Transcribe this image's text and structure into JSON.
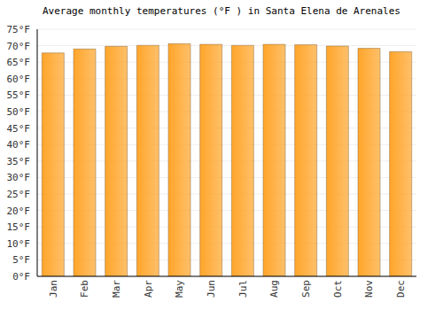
{
  "chart_data": {
    "type": "bar",
    "title": "Average monthly temperatures (°F ) in Santa Elena de Arenales",
    "categories": [
      "Jan",
      "Feb",
      "Mar",
      "Apr",
      "May",
      "Jun",
      "Jul",
      "Aug",
      "Sep",
      "Oct",
      "Nov",
      "Dec"
    ],
    "values": [
      67.8,
      69.0,
      69.8,
      70.1,
      70.6,
      70.4,
      70.1,
      70.4,
      70.3,
      69.9,
      69.2,
      68.2
    ],
    "color": "#ffa52a",
    "ylim": [
      0,
      75
    ],
    "yticks": [
      {
        "value": 0,
        "label": "0°F"
      },
      {
        "value": 5,
        "label": "5°F"
      },
      {
        "value": 10,
        "label": "10°F"
      },
      {
        "value": 15,
        "label": "15°F"
      },
      {
        "value": 20,
        "label": "20°F"
      },
      {
        "value": 25,
        "label": "25°F"
      },
      {
        "value": 30,
        "label": "30°F"
      },
      {
        "value": 35,
        "label": "35°F"
      },
      {
        "value": 40,
        "label": "40°F"
      },
      {
        "value": 45,
        "label": "45°F"
      },
      {
        "value": 50,
        "label": "50°F"
      },
      {
        "value": 55,
        "label": "55°F"
      },
      {
        "value": 60,
        "label": "60°F"
      },
      {
        "value": 65,
        "label": "65°F"
      },
      {
        "value": 70,
        "label": "70°F"
      },
      {
        "value": 75,
        "label": "75°F"
      }
    ],
    "grid": true
  }
}
